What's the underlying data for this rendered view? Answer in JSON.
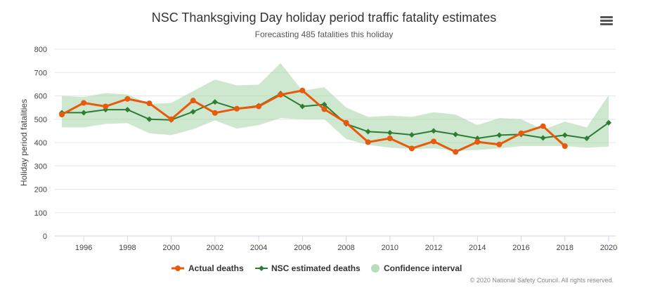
{
  "colors": {
    "actual": "#e8590c",
    "estimated": "#2e7d32",
    "confidence": "#a5d6a7",
    "grid": "#e6e6e6",
    "axis": "#ccd6eb"
  },
  "menu": {
    "icon": "hamburger-menu-icon"
  },
  "chart_data": {
    "type": "line",
    "title": "NSC Thanksgiving Day holiday period traffic fatality estimates",
    "subtitle": "Forecasting 485 fatalities this holiday",
    "ylabel": "Holiday period fatalities",
    "xlabel": "",
    "xlim": [
      1995,
      2020
    ],
    "ylim": [
      0,
      800
    ],
    "xticks": [
      1996,
      1998,
      2000,
      2002,
      2004,
      2006,
      2008,
      2010,
      2012,
      2014,
      2016,
      2018,
      2020
    ],
    "yticks": [
      0,
      100,
      200,
      300,
      400,
      500,
      600,
      700,
      800
    ],
    "grid": true,
    "legend_position": "bottom-center",
    "series": [
      {
        "name": "Actual deaths",
        "type": "line",
        "marker": "circle",
        "x": [
          1995,
          1996,
          1997,
          1998,
          1999,
          2000,
          2001,
          2002,
          2003,
          2004,
          2005,
          2006,
          2007,
          2008,
          2009,
          2010,
          2011,
          2012,
          2013,
          2014,
          2015,
          2016,
          2017,
          2018
        ],
        "values": [
          520,
          570,
          555,
          587,
          568,
          500,
          580,
          527,
          545,
          555,
          605,
          623,
          543,
          485,
          402,
          418,
          375,
          405,
          360,
          403,
          392,
          440,
          470,
          385
        ]
      },
      {
        "name": "NSC estimated deaths",
        "type": "line",
        "marker": "diamond",
        "x": [
          1995,
          1996,
          1997,
          1998,
          1999,
          2000,
          2001,
          2002,
          2003,
          2004,
          2005,
          2006,
          2007,
          2008,
          2009,
          2010,
          2011,
          2012,
          2013,
          2014,
          2015,
          2016,
          2017,
          2018,
          2019,
          2020
        ],
        "values": [
          528,
          528,
          541,
          541,
          500,
          497,
          532,
          574,
          545,
          558,
          610,
          555,
          563,
          480,
          447,
          442,
          433,
          450,
          435,
          418,
          432,
          435,
          420,
          432,
          418,
          485
        ]
      },
      {
        "name": "Confidence interval",
        "type": "arearange",
        "x": [
          1995,
          1996,
          1997,
          1998,
          1999,
          2000,
          2001,
          2002,
          2003,
          2004,
          2005,
          2006,
          2007,
          2008,
          2009,
          2010,
          2011,
          2012,
          2013,
          2014,
          2015,
          2016,
          2017,
          2018,
          2019,
          2020
        ],
        "low": [
          465,
          465,
          480,
          483,
          440,
          432,
          457,
          495,
          460,
          475,
          505,
          500,
          500,
          415,
          390,
          378,
          372,
          375,
          365,
          368,
          375,
          385,
          385,
          385,
          378,
          383
        ],
        "high": [
          600,
          595,
          612,
          606,
          565,
          570,
          620,
          670,
          645,
          648,
          740,
          622,
          637,
          550,
          510,
          515,
          510,
          530,
          520,
          475,
          505,
          500,
          455,
          490,
          465,
          603
        ]
      }
    ]
  },
  "credit": "© 2020 National Safety Council. All rights reserved."
}
